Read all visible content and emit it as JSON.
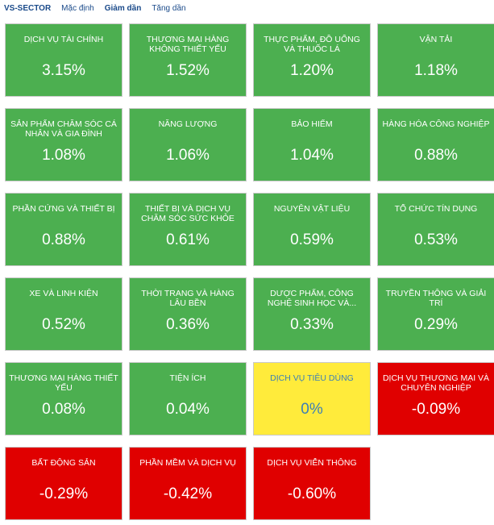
{
  "header": {
    "title": "VS-SECTOR",
    "links": [
      {
        "label": "Mặc định",
        "active": false
      },
      {
        "label": "Giảm dần",
        "active": true
      },
      {
        "label": "Tăng dần",
        "active": false
      }
    ]
  },
  "colors": {
    "up": "#4caf50",
    "flat": "#ffeb3b",
    "down": "#e00000",
    "flat_text": "#3c7fb6"
  },
  "sectors": [
    {
      "name": "DỊCH VỤ TÀI CHÍNH",
      "change": "3.15%",
      "status": "up"
    },
    {
      "name": "THƯƠNG MẠI HÀNG KHÔNG THIẾT YẾU",
      "change": "1.52%",
      "status": "up"
    },
    {
      "name": "THỰC PHẨM, ĐỒ UỐNG VÀ THUỐC LÁ",
      "change": "1.20%",
      "status": "up"
    },
    {
      "name": "VẬN TẢI",
      "change": "1.18%",
      "status": "up"
    },
    {
      "name": "SẢN PHẨM CHĂM SÓC CÁ NHÂN VÀ GIA ĐÌNH",
      "change": "1.08%",
      "status": "up"
    },
    {
      "name": "NĂNG LƯỢNG",
      "change": "1.06%",
      "status": "up"
    },
    {
      "name": "BẢO HIỂM",
      "change": "1.04%",
      "status": "up"
    },
    {
      "name": "HÀNG HÓA CÔNG NGHIỆP",
      "change": "0.88%",
      "status": "up"
    },
    {
      "name": "PHẦN CỨNG VÀ THIẾT BỊ",
      "change": "0.88%",
      "status": "up"
    },
    {
      "name": "THIẾT BỊ VÀ DỊCH VỤ CHĂM SÓC SỨC KHỎE",
      "change": "0.61%",
      "status": "up"
    },
    {
      "name": "NGUYÊN VẬT LIỆU",
      "change": "0.59%",
      "status": "up"
    },
    {
      "name": "TỔ CHỨC TÍN DỤNG",
      "change": "0.53%",
      "status": "up"
    },
    {
      "name": "XE VÀ LINH KIỆN",
      "change": "0.52%",
      "status": "up"
    },
    {
      "name": "THỜI TRANG VÀ HÀNG LÂU BỀN",
      "change": "0.36%",
      "status": "up"
    },
    {
      "name": "DƯỢC PHẨM, CÔNG NGHỆ SINH HỌC VÀ...",
      "change": "0.33%",
      "status": "up"
    },
    {
      "name": "TRUYỀN THÔNG VÀ GIẢI TRÍ",
      "change": "0.29%",
      "status": "up"
    },
    {
      "name": "THƯƠNG MẠI HÀNG THIẾT YẾU",
      "change": "0.08%",
      "status": "up"
    },
    {
      "name": "TIỆN ÍCH",
      "change": "0.04%",
      "status": "up"
    },
    {
      "name": "DỊCH VỤ TIÊU DÙNG",
      "change": "0%",
      "status": "flat"
    },
    {
      "name": "DỊCH VỤ THƯƠNG MẠI VÀ CHUYÊN NGHIỆP",
      "change": "-0.09%",
      "status": "down"
    },
    {
      "name": "BẤT ĐỘNG SẢN",
      "change": "-0.29%",
      "status": "down"
    },
    {
      "name": "PHẦN MỀM VÀ DỊCH VỤ",
      "change": "-0.42%",
      "status": "down"
    },
    {
      "name": "DỊCH VỤ VIỄN THÔNG",
      "change": "-0.60%",
      "status": "down"
    }
  ]
}
